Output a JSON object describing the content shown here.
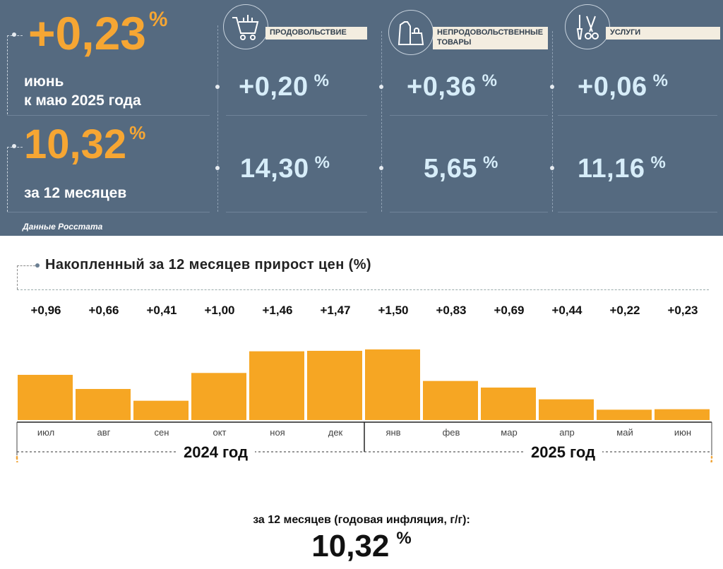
{
  "summary": {
    "monthly_value": "+0,23",
    "monthly_unit": "%",
    "monthly_caption_line1": "июнь",
    "monthly_caption_line2": "к маю 2025 года",
    "annual_value": "10,32",
    "annual_unit": "%",
    "annual_caption": "за 12 месяцев",
    "source": "Данные Росстата"
  },
  "categories": [
    {
      "label": "ПРОДОВОЛЬСТВИЕ",
      "icon": "shopping-cart-icon",
      "monthly": "+0,20",
      "annual": "14,30",
      "unit": "%"
    },
    {
      "label": "НЕПРОДОВОЛЬСТВЕННЫЕ ТОВАРЫ",
      "icon": "clothing-icon",
      "monthly": "+0,36",
      "annual": "5,65",
      "unit": "%"
    },
    {
      "label": "УСЛУГИ",
      "icon": "tools-icon",
      "monthly": "+0,06",
      "annual": "11,16",
      "unit": "%"
    }
  ],
  "chart_data": {
    "type": "bar",
    "title": "Накопленный за 12 месяцев прирост цен (%)",
    "categories": [
      "июл",
      "авг",
      "сен",
      "окт",
      "ноя",
      "дек",
      "янв",
      "фев",
      "мар",
      "апр",
      "май",
      "июн"
    ],
    "values": [
      0.96,
      0.66,
      0.41,
      1.0,
      1.46,
      1.47,
      1.5,
      0.83,
      0.69,
      0.44,
      0.22,
      0.23
    ],
    "value_labels": [
      "+0,96",
      "+0,66",
      "+0,41",
      "+1,00",
      "+1,46",
      "+1,47",
      "+1,50",
      "+0,83",
      "+0,69",
      "+0,44",
      "+0,22",
      "+0,23"
    ],
    "years": [
      "2024 год",
      "2025 год"
    ],
    "annual_label": "за 12 месяцев (годовая инфляция, г/г):",
    "annual_value": "10,32",
    "annual_unit": "%",
    "bar_color": "#f6a623"
  },
  "colors": {
    "panel": "#556a80",
    "accent_orange": "#f6a633",
    "value_light": "#d7edf9"
  }
}
